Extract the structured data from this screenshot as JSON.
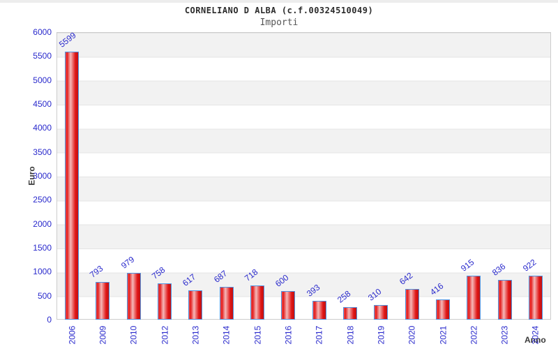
{
  "chart_data": {
    "type": "bar",
    "title": "CORNELIANO D ALBA (c.f.00324510049)",
    "subtitle": "Importi",
    "xlabel": "Anno",
    "ylabel": "Euro",
    "categories": [
      "2006",
      "2009",
      "2010",
      "2012",
      "2013",
      "2014",
      "2015",
      "2016",
      "2017",
      "2018",
      "2019",
      "2020",
      "2021",
      "2022",
      "2023",
      "2024"
    ],
    "values": [
      5599,
      793,
      979,
      758,
      617,
      687,
      718,
      600,
      393,
      258,
      310,
      642,
      416,
      915,
      836,
      922
    ],
    "ylim": [
      0,
      6000
    ],
    "ytick_step": 500,
    "grid": "alternating-horizontal-bands",
    "legend_position": "none",
    "value_label_rotation_deg": -38,
    "x_tick_rotation_deg": -90
  },
  "colors": {
    "tick_label_blue": "#2929cc",
    "value_label_blue": "#2929cc",
    "title_color": "#2b2b2b",
    "subtitle_color": "#555555",
    "axis_title_color": "#3a3a3a",
    "band_gray": "#f2f2f2",
    "gridline": "#e4e4e4",
    "plot_border": "#cccccc",
    "bar_border": "#4f93e0",
    "bar_gradient": [
      "#ef5350",
      "#e31b1b",
      "#f5b8b8",
      "#e01515",
      "#c11212"
    ]
  }
}
